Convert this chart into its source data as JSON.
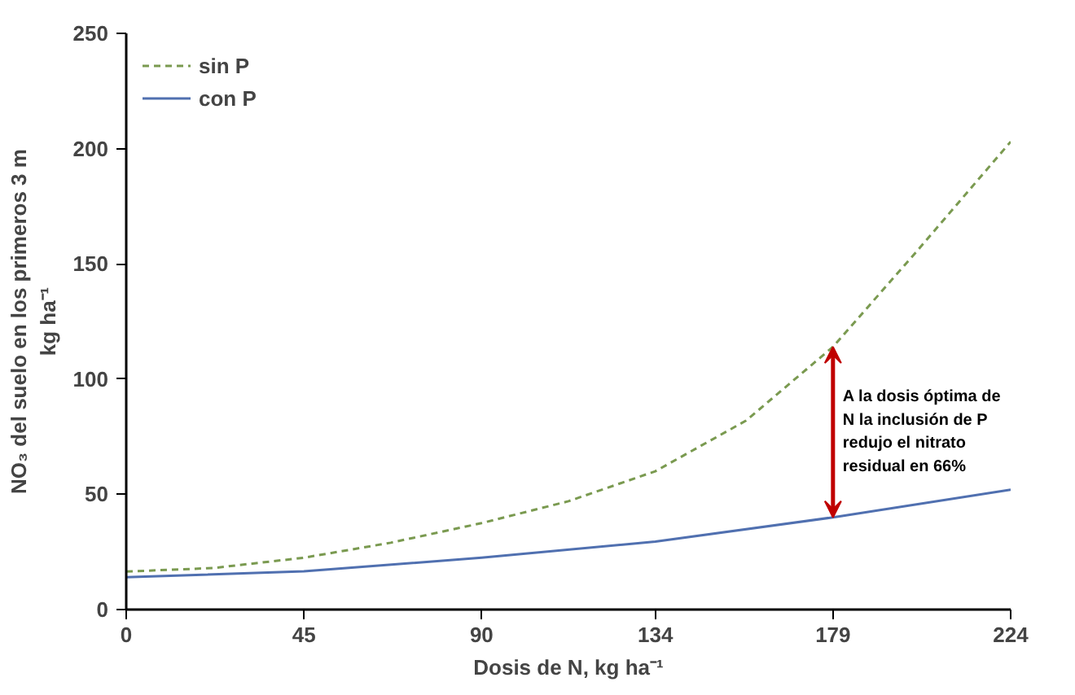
{
  "chart_data": {
    "type": "line",
    "xlabel": "Dosis de N, kg ha⁻¹",
    "ylabel": "NO₃ del suelo en los primeros 3 m\nkg ha⁻¹",
    "xlim": [
      0,
      224
    ],
    "xticks": [
      0,
      45,
      90,
      134,
      179,
      224
    ],
    "ylim": [
      0,
      250
    ],
    "yticks": [
      0,
      50,
      100,
      150,
      200,
      250
    ],
    "grid": false,
    "legend": "top left",
    "series": [
      {
        "name": "sin P",
        "color": "#7a9a50",
        "line_style": "dashed",
        "x": [
          0,
          22,
          45,
          67,
          90,
          112,
          134,
          157,
          179,
          200,
          224
        ],
        "values": [
          16.5,
          18,
          22.5,
          29,
          37.5,
          47,
          60,
          82,
          114,
          155,
          203
        ]
      },
      {
        "name": "con P",
        "color": "#5070b0",
        "line_style": "solid",
        "x": [
          0,
          45,
          90,
          134,
          179,
          224
        ],
        "values": [
          14,
          16.6,
          22.5,
          29.5,
          40,
          52
        ]
      }
    ],
    "annotations": [
      "A la dosis óptima de\nN la inclusión de P\nredujo el nitrato\nresidual en 66%"
    ]
  }
}
